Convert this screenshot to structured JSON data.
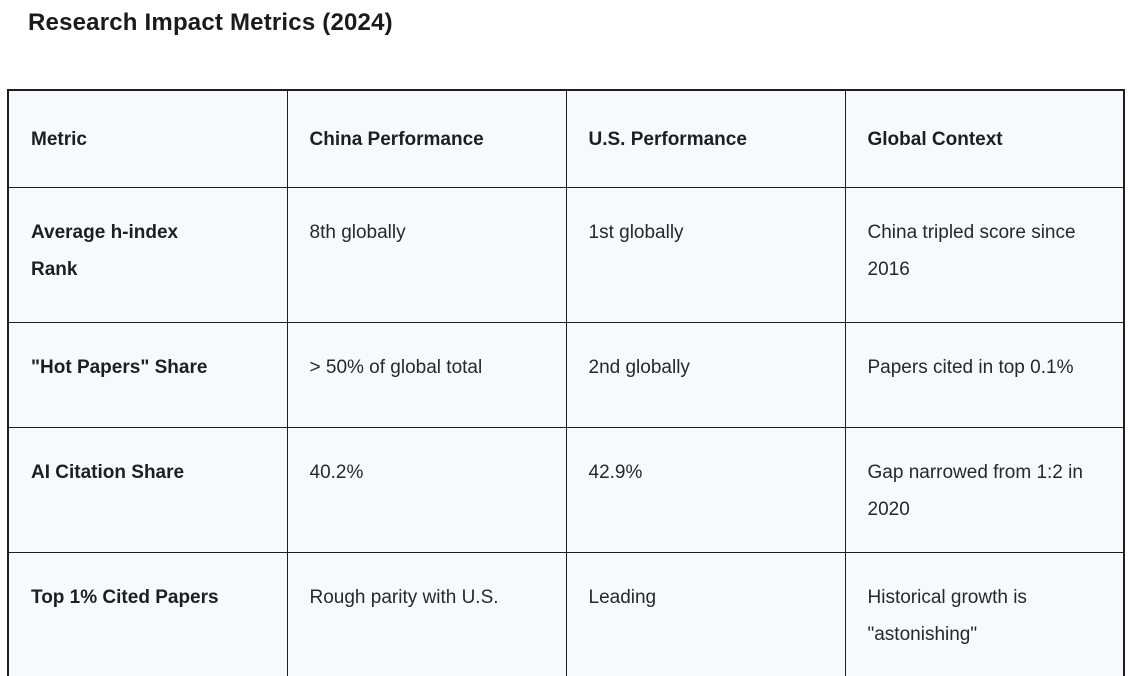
{
  "page": {
    "title": "Research Impact Metrics (2024)"
  },
  "colors": {
    "cell_background": "#f8f9fc",
    "border": "#1d1d1d",
    "heading_text": "#1b1f24",
    "body_text": "#24292f",
    "page_background": "#ffffff"
  },
  "table": {
    "columns": [
      "Metric",
      "China Performance",
      "U.S. Performance",
      "Global Context"
    ],
    "rows": [
      {
        "metric": "Average h-index\nRank",
        "china": "8th globally",
        "us": "1st globally",
        "global": "China tripled score since 2016"
      },
      {
        "metric": "\"Hot Papers\" Share",
        "china": "> 50% of global total",
        "us": "2nd globally",
        "global": "Papers cited in top 0.1%"
      },
      {
        "metric": "AI Citation Share",
        "china": "40.2%",
        "us": "42.9%",
        "global": "Gap narrowed from 1:2 in 2020"
      },
      {
        "metric": "Top 1% Cited Papers",
        "china": "Rough parity with U.S.",
        "us": "Leading",
        "global": "Historical growth is \"astonishing\""
      }
    ]
  }
}
